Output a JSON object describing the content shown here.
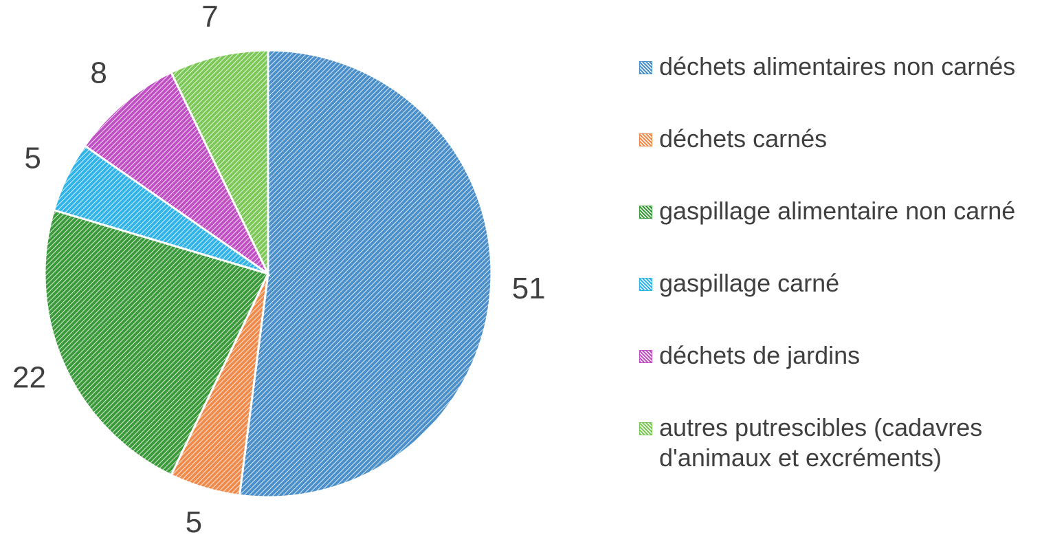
{
  "chart_data": {
    "type": "pie",
    "categories": [
      "déchets alimentaires non carnés",
      "déchets carnés",
      "gaspillage alimentaire non carné",
      "gaspillage carné",
      "déchets de jardins",
      "autres putrescibles (cadavres d'animaux et excréments)"
    ],
    "values": [
      51,
      5,
      22,
      5,
      8,
      7
    ],
    "colors": [
      "#4a8fc9",
      "#f08a4b",
      "#3a9a3a",
      "#2fb3e8",
      "#c04fc4",
      "#7cc857"
    ],
    "legend": "right"
  }
}
